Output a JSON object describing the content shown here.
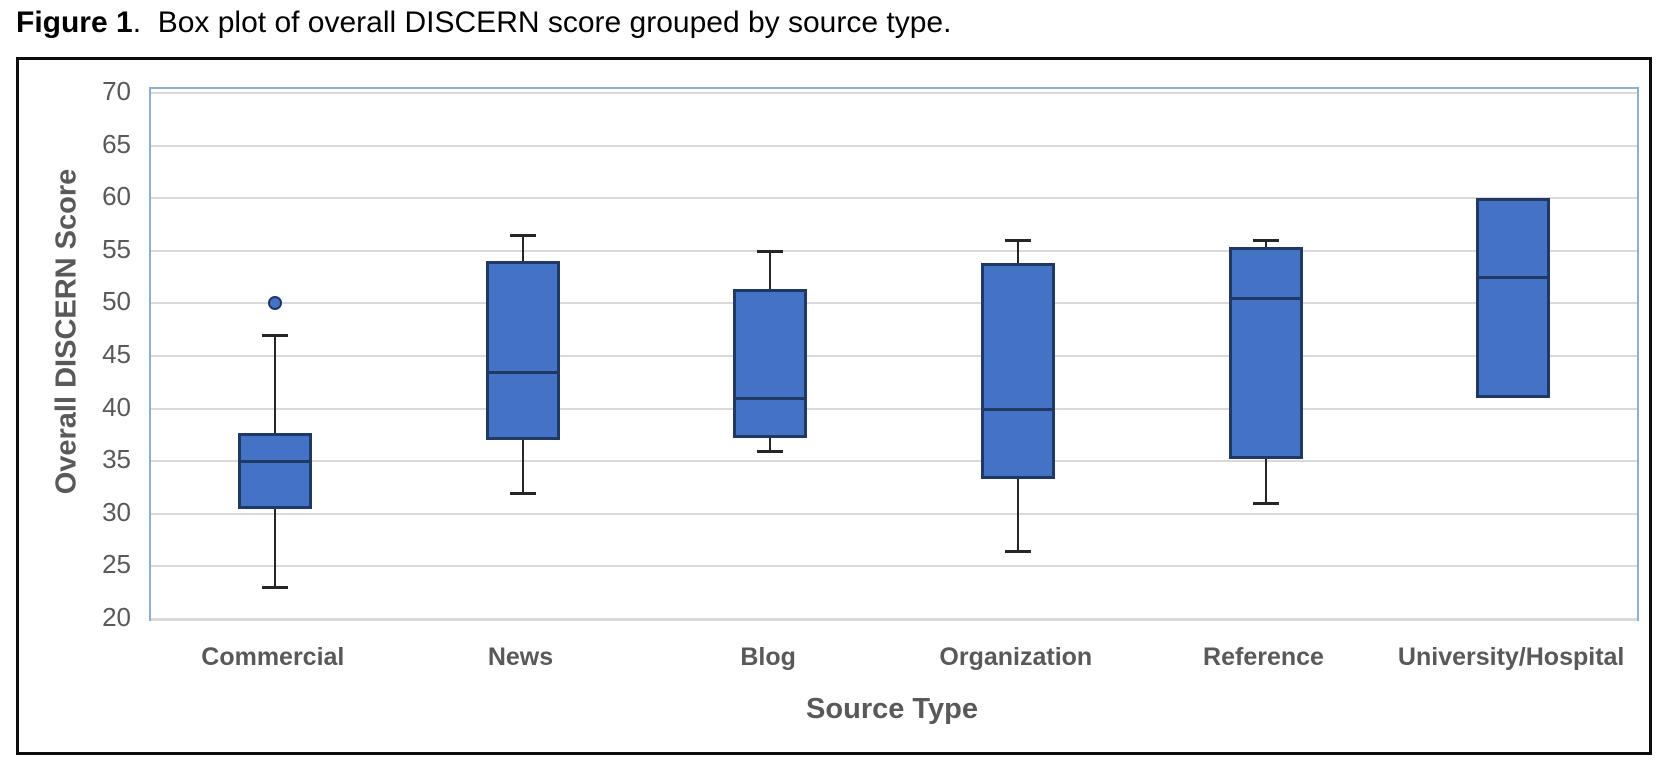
{
  "figure": {
    "title_prefix": "Figure 1",
    "title_rest": ".  Box plot of overall DISCERN score grouped by source type."
  },
  "chart_data": {
    "type": "boxplot",
    "title": "Figure 1. Box plot of overall DISCERN score grouped by source type.",
    "xlabel": "Source Type",
    "ylabel": "Overall DISCERN Score",
    "ylim": [
      20,
      70
    ],
    "yticks": [
      70,
      65,
      60,
      55,
      50,
      45,
      40,
      35,
      30,
      25,
      20
    ],
    "grid": true,
    "legend": false,
    "categories": [
      "Commercial",
      "News",
      "Blog",
      "Organization",
      "Reference",
      "University/Hospital"
    ],
    "series": [
      {
        "category": "Commercial",
        "whisker_low": 23,
        "q1": 30.5,
        "median": 35,
        "q3": 37.7,
        "whisker_high": 47,
        "outliers": [
          50
        ]
      },
      {
        "category": "News",
        "whisker_low": 32,
        "q1": 37,
        "median": 43.5,
        "q3": 54,
        "whisker_high": 56.5,
        "outliers": []
      },
      {
        "category": "Blog",
        "whisker_low": 36,
        "q1": 37.2,
        "median": 41,
        "q3": 51.4,
        "whisker_high": 55,
        "outliers": []
      },
      {
        "category": "Organization",
        "whisker_low": 26.5,
        "q1": 33.3,
        "median": 40,
        "q3": 53.8,
        "whisker_high": 56,
        "outliers": []
      },
      {
        "category": "Reference",
        "whisker_low": 31,
        "q1": 35.2,
        "median": 50.5,
        "q3": 55.4,
        "whisker_high": 56,
        "outliers": []
      },
      {
        "category": "University/Hospital",
        "whisker_low": 41,
        "q1": 41,
        "median": 52.5,
        "q3": 60,
        "whisker_high": 60,
        "outliers": []
      }
    ],
    "colors": {
      "box_fill": "#4472C4",
      "box_border": "#1F3864",
      "whisker": "#262626",
      "gridline": "#D9D9D9",
      "plot_border": "#8FAFD0",
      "axis_text": "#595959",
      "title_text": "#000000"
    }
  }
}
